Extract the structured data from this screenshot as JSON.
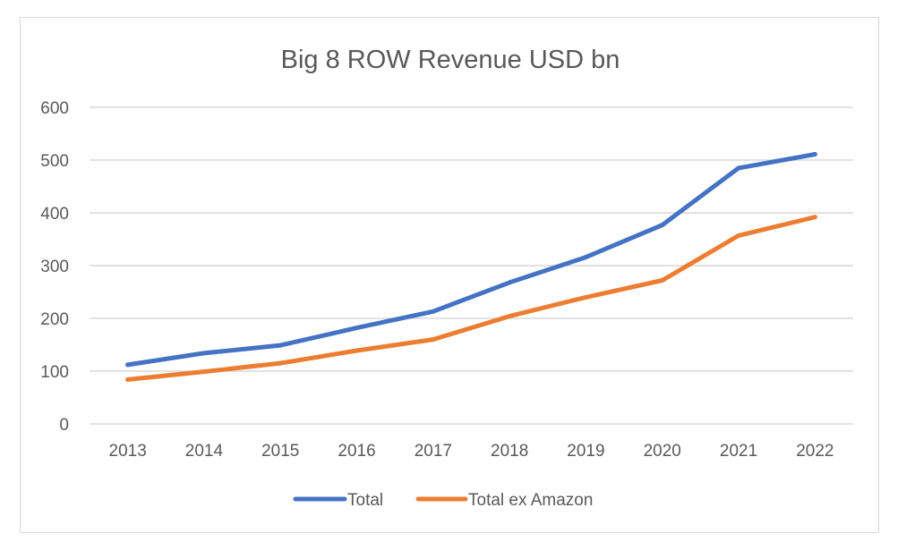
{
  "chart_data": {
    "type": "line",
    "title": "Big 8 ROW Revenue USD bn",
    "xlabel": "",
    "ylabel": "",
    "categories": [
      "2013",
      "2014",
      "2015",
      "2016",
      "2017",
      "2018",
      "2019",
      "2020",
      "2021",
      "2022"
    ],
    "ylim": [
      0,
      600
    ],
    "yticks": [
      "0",
      "100",
      "200",
      "300",
      "400",
      "500",
      "600"
    ],
    "grid": true,
    "legend_position": "bottom",
    "series": [
      {
        "name": "Total",
        "color": "#4472C4",
        "values": [
          112,
          134,
          149,
          182,
          213,
          268,
          316,
          377,
          485,
          511
        ]
      },
      {
        "name": "Total ex Amazon",
        "color": "#ED7D31",
        "values": [
          84,
          99,
          115,
          139,
          160,
          204,
          240,
          272,
          357,
          392
        ]
      }
    ]
  }
}
